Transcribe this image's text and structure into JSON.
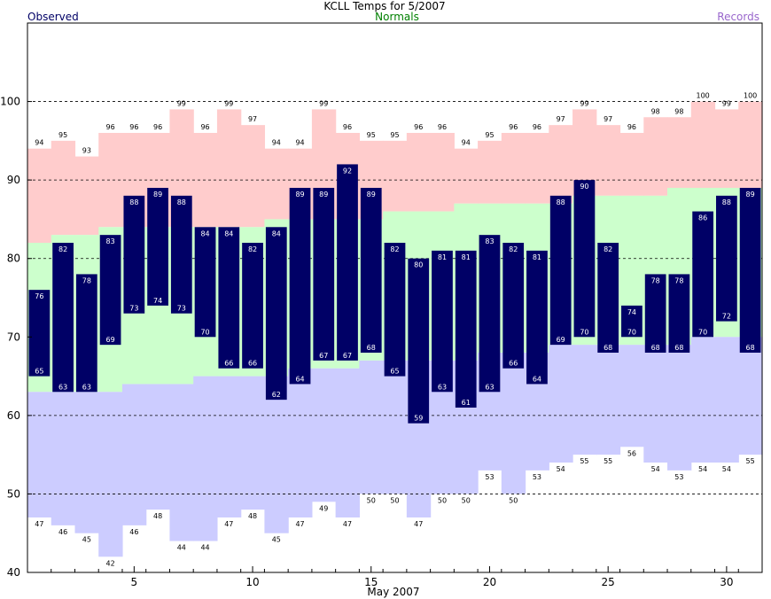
{
  "chart_data": {
    "type": "bar",
    "title": "KCLL Temps for 5/2007",
    "legend": {
      "observed": "Observed",
      "normals": "Normals",
      "records": "Records"
    },
    "xlabel": "May 2007",
    "ylim": [
      40,
      110
    ],
    "yticks": [
      40,
      50,
      60,
      70,
      80,
      90,
      100
    ],
    "xticks": [
      5,
      10,
      15,
      20,
      25,
      30
    ],
    "grid": "dashed horizontal at 50, 60, 80, 90, 100",
    "days": [
      1,
      2,
      3,
      4,
      5,
      6,
      7,
      8,
      9,
      10,
      11,
      12,
      13,
      14,
      15,
      16,
      17,
      18,
      19,
      20,
      21,
      22,
      23,
      24,
      25,
      26,
      27,
      28,
      29,
      30,
      31
    ],
    "observed_high": [
      76,
      82,
      78,
      83,
      88,
      89,
      88,
      84,
      84,
      82,
      84,
      89,
      89,
      92,
      89,
      82,
      80,
      81,
      81,
      83,
      82,
      81,
      88,
      90,
      82,
      74,
      78,
      78,
      86,
      88,
      89
    ],
    "observed_low": [
      65,
      63,
      63,
      69,
      73,
      74,
      73,
      70,
      66,
      66,
      62,
      64,
      67,
      67,
      68,
      65,
      59,
      63,
      61,
      63,
      66,
      64,
      69,
      70,
      68,
      70,
      68,
      68,
      70,
      72,
      68
    ],
    "record_high": [
      94,
      95,
      93,
      96,
      96,
      96,
      99,
      96,
      99,
      97,
      94,
      94,
      99,
      96,
      95,
      95,
      96,
      96,
      94,
      95,
      96,
      96,
      97,
      99,
      97,
      96,
      98,
      98,
      100,
      99,
      100
    ],
    "record_low": [
      47,
      46,
      45,
      42,
      46,
      48,
      44,
      44,
      47,
      48,
      45,
      47,
      49,
      47,
      50,
      50,
      47,
      50,
      50,
      53,
      50,
      53,
      54,
      55,
      55,
      56,
      54,
      53,
      54,
      54,
      55
    ],
    "normal_high": [
      82,
      83,
      83,
      84,
      84,
      84,
      84,
      84,
      84,
      84,
      85,
      85,
      85,
      85,
      85,
      86,
      86,
      86,
      87,
      87,
      87,
      87,
      87,
      88,
      88,
      88,
      88,
      89,
      89,
      89,
      89
    ],
    "normal_low": [
      63,
      63,
      63,
      63,
      64,
      64,
      64,
      65,
      65,
      65,
      65,
      66,
      66,
      66,
      67,
      67,
      67,
      67,
      67,
      68,
      68,
      68,
      69,
      69,
      69,
      69,
      69,
      69,
      70,
      70,
      70
    ],
    "colors": {
      "observed": "#000066",
      "normal_band": "#ccffcc",
      "record_high_band": "#ffcccc",
      "record_low_band": "#ccccff",
      "normals_text": "#008000",
      "records_text": "#9966cc",
      "observed_text": "#000066"
    }
  }
}
